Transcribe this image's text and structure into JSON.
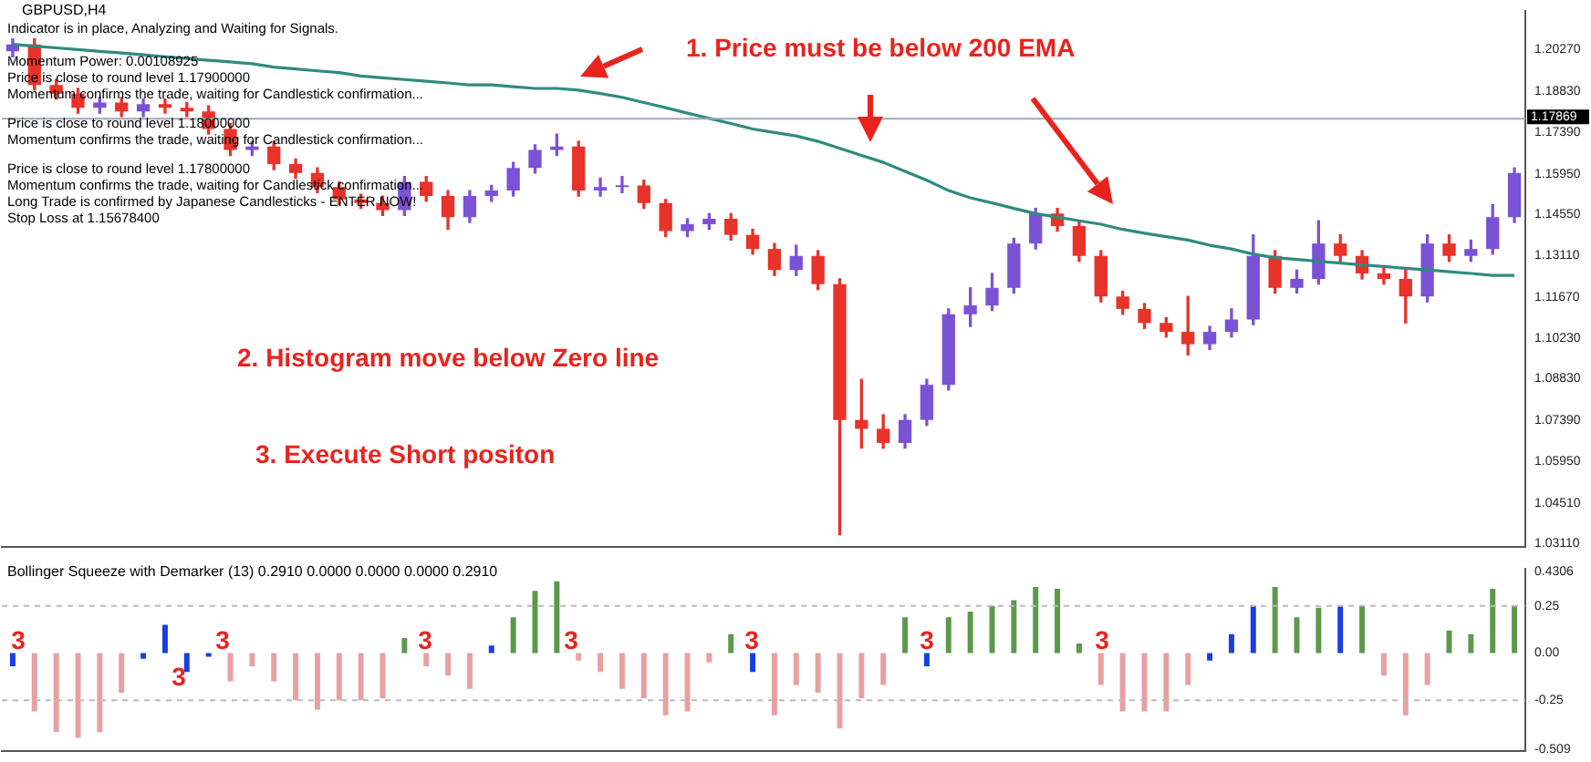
{
  "chart_data": [
    {
      "type": "candlestick",
      "title": "GBPUSD,H4",
      "annotations": [
        "Indicator is in place, Analyzing and Waiting for Signals.",
        "Momentum Power: 0.00108925",
        "Price is close to round level 1.17900000",
        "Momentum confirms the trade, waiting for Candlestick confirmation...",
        "Price is close to round level 1.18000000",
        "Momentum confirms the trade, waiting for Candlestick confirmation...",
        "Price is close to round level 1.17800000",
        "Momentum confirms the trade, waiting for Candlestick confirmation...",
        "Long Trade is confirmed by Japanese Candlesticks - ENTER NOW!",
        "Stop Loss at 1.15678400",
        "1. Price must be below 200 EMA",
        "2. Histogram move below Zero line",
        "3. Execute Short positon"
      ],
      "categories": [
        null,
        null,
        null,
        null,
        null,
        null,
        null,
        null,
        null,
        null,
        null,
        null,
        null,
        null,
        null,
        null,
        null,
        null,
        null,
        null,
        null,
        null,
        null,
        null,
        null,
        null,
        null,
        null,
        null,
        null,
        null,
        null,
        null,
        null,
        null,
        null,
        null,
        null,
        null,
        null,
        null,
        null,
        null,
        null,
        null,
        null,
        null,
        null,
        null,
        null,
        null,
        null,
        null,
        null,
        null,
        null,
        null,
        null,
        null,
        null,
        null,
        null,
        null,
        null,
        null,
        null,
        null,
        null,
        null,
        null
      ],
      "ohlc": [
        [
          1.2021,
          1.2064,
          1.2002,
          1.2045
        ],
        [
          1.2045,
          1.2064,
          1.1886,
          1.1904
        ],
        [
          1.1904,
          1.1923,
          1.1855,
          1.1874
        ],
        [
          1.1874,
          1.1892,
          1.1806,
          1.1825
        ],
        [
          1.1825,
          1.1861,
          1.1806,
          1.1843
        ],
        [
          1.1843,
          1.1861,
          1.1794,
          1.1812
        ],
        [
          1.1812,
          1.1855,
          1.1794,
          1.1837
        ],
        [
          1.1837,
          1.1855,
          1.1806,
          1.1825
        ],
        [
          1.1825,
          1.1843,
          1.1794,
          1.1812
        ],
        [
          1.1812,
          1.1831,
          1.1733,
          1.1751
        ],
        [
          1.1751,
          1.177,
          1.1659,
          1.1678
        ],
        [
          1.1678,
          1.1708,
          1.1659,
          1.169
        ],
        [
          1.169,
          1.1708,
          1.161,
          1.1629
        ],
        [
          1.1629,
          1.1647,
          1.158,
          1.1598
        ],
        [
          1.1598,
          1.1616,
          1.153,
          1.1549
        ],
        [
          1.1549,
          1.1567,
          1.1488,
          1.1506
        ],
        [
          1.1506,
          1.1524,
          1.1475,
          1.1494
        ],
        [
          1.1494,
          1.1518,
          1.1451,
          1.1469
        ],
        [
          1.1469,
          1.1586,
          1.1451,
          1.1567
        ],
        [
          1.1567,
          1.1586,
          1.15,
          1.1518
        ],
        [
          1.1518,
          1.1537,
          1.1402,
          1.1445
        ],
        [
          1.1445,
          1.1537,
          1.1426,
          1.1518
        ],
        [
          1.1518,
          1.1555,
          1.15,
          1.1537
        ],
        [
          1.1537,
          1.1635,
          1.1518,
          1.1616
        ],
        [
          1.1616,
          1.1696,
          1.1598,
          1.1678
        ],
        [
          1.1678,
          1.1733,
          1.1659,
          1.169
        ],
        [
          1.169,
          1.1708,
          1.1518,
          1.1537
        ],
        [
          1.1537,
          1.158,
          1.1518,
          1.1549
        ],
        [
          1.1549,
          1.1586,
          1.153,
          1.1555
        ],
        [
          1.1555,
          1.1573,
          1.1475,
          1.1494
        ],
        [
          1.1494,
          1.1506,
          1.1377,
          1.1396
        ],
        [
          1.1396,
          1.1439,
          1.1377,
          1.142
        ],
        [
          1.142,
          1.1457,
          1.1402,
          1.1439
        ],
        [
          1.1439,
          1.1457,
          1.1365,
          1.1383
        ],
        [
          1.1383,
          1.1402,
          1.1316,
          1.1334
        ],
        [
          1.1334,
          1.1353,
          1.1242,
          1.1261
        ],
        [
          1.1261,
          1.1347,
          1.1242,
          1.131
        ],
        [
          1.131,
          1.1328,
          1.1193,
          1.1212
        ],
        [
          1.1212,
          1.123,
          1.0341,
          1.074
        ],
        [
          1.074,
          1.0881,
          1.0642,
          1.0709
        ],
        [
          1.0709,
          1.0758,
          1.0642,
          1.066
        ],
        [
          1.066,
          1.0758,
          1.0642,
          1.074
        ],
        [
          1.074,
          1.0881,
          1.0721,
          1.0862
        ],
        [
          1.0862,
          1.1126,
          1.0844,
          1.1107
        ],
        [
          1.1107,
          1.1199,
          1.1065,
          1.1138
        ],
        [
          1.1138,
          1.1249,
          1.112,
          1.1199
        ],
        [
          1.1199,
          1.1371,
          1.1181,
          1.1353
        ],
        [
          1.1353,
          1.1475,
          1.1334,
          1.1457
        ],
        [
          1.1457,
          1.1475,
          1.1396,
          1.1414
        ],
        [
          1.1414,
          1.1432,
          1.1291,
          1.131
        ],
        [
          1.131,
          1.1328,
          1.115,
          1.1169
        ],
        [
          1.1169,
          1.1187,
          1.1107,
          1.1126
        ],
        [
          1.1126,
          1.1144,
          1.1058,
          1.1077
        ],
        [
          1.1077,
          1.1095,
          1.1028,
          1.1046
        ],
        [
          1.1046,
          1.1169,
          1.0966,
          1.1003
        ],
        [
          1.1003,
          1.1065,
          1.0985,
          1.1046
        ],
        [
          1.1046,
          1.1126,
          1.1028,
          1.1089
        ],
        [
          1.1089,
          1.1383,
          1.1071,
          1.131
        ],
        [
          1.131,
          1.1328,
          1.1181,
          1.1199
        ],
        [
          1.1199,
          1.1261,
          1.1181,
          1.123
        ],
        [
          1.123,
          1.1432,
          1.1212,
          1.1353
        ],
        [
          1.1353,
          1.1383,
          1.1291,
          1.131
        ],
        [
          1.131,
          1.1328,
          1.123,
          1.1249
        ],
        [
          1.1249,
          1.1267,
          1.1212,
          1.123
        ],
        [
          1.123,
          1.1261,
          1.1077,
          1.1169
        ],
        [
          1.1169,
          1.1383,
          1.115,
          1.1353
        ],
        [
          1.1353,
          1.1383,
          1.1291,
          1.131
        ],
        [
          1.131,
          1.1365,
          1.1291,
          1.1334
        ],
        [
          1.1334,
          1.1488,
          1.1316,
          1.1445
        ],
        [
          1.1445,
          1.1616,
          1.1426,
          1.1598
        ]
      ],
      "colors": [
        "#7b52d6",
        "#e8322a",
        "#e8322a",
        "#e8322a",
        "#7b52d6",
        "#e8322a",
        "#7b52d6",
        "#e8322a",
        "#e8322a",
        "#e8322a",
        "#e8322a",
        "#7b52d6",
        "#e8322a",
        "#e8322a",
        "#e8322a",
        "#e8322a",
        "#e8322a",
        "#e8322a",
        "#7b52d6",
        "#e8322a",
        "#e8322a",
        "#7b52d6",
        "#7b52d6",
        "#7b52d6",
        "#7b52d6",
        "#7b52d6",
        "#e8322a",
        "#7b52d6",
        "#7b52d6",
        "#e8322a",
        "#e8322a",
        "#7b52d6",
        "#7b52d6",
        "#e8322a",
        "#e8322a",
        "#e8322a",
        "#7b52d6",
        "#e8322a",
        "#e8322a",
        "#e8322a",
        "#e8322a",
        "#7b52d6",
        "#7b52d6",
        "#7b52d6",
        "#7b52d6",
        "#7b52d6",
        "#7b52d6",
        "#7b52d6",
        "#e8322a",
        "#e8322a",
        "#e8322a",
        "#e8322a",
        "#e8322a",
        "#e8322a",
        "#e8322a",
        "#7b52d6",
        "#7b52d6",
        "#7b52d6",
        "#e8322a",
        "#7b52d6",
        "#7b52d6",
        "#e8322a",
        "#e8322a",
        "#e8322a",
        "#e8322a",
        "#7b52d6",
        "#e8322a",
        "#7b52d6",
        "#7b52d6",
        "#7b52d6"
      ],
      "series": [
        {
          "type": "line",
          "color": "#2e8b7e",
          "values": [
            1.2045,
            1.2039,
            1.2033,
            1.2027,
            1.2021,
            1.2015,
            1.2009,
            1.2002,
            1.1996,
            1.199,
            1.1984,
            1.1978,
            1.1966,
            1.196,
            1.1953,
            1.1947,
            1.1935,
            1.1929,
            1.1923,
            1.1917,
            1.1911,
            1.1904,
            1.1904,
            1.1898,
            1.1892,
            1.1892,
            1.1886,
            1.1874,
            1.1861,
            1.1843,
            1.1825,
            1.1806,
            1.1788,
            1.177,
            1.1751,
            1.1739,
            1.1727,
            1.1708,
            1.1684,
            1.1659,
            1.1635,
            1.1604,
            1.1573,
            1.1537,
            1.1512,
            1.1494,
            1.1475,
            1.1457,
            1.1445,
            1.1432,
            1.142,
            1.1402,
            1.1389,
            1.1377,
            1.1365,
            1.1347,
            1.1334,
            1.1316,
            1.1304,
            1.1298,
            1.1291,
            1.1285,
            1.1279,
            1.1273,
            1.1267,
            1.1261,
            1.1255,
            1.1249,
            1.1242,
            1.1242
          ]
        }
      ],
      "ylim": [
        1.03,
        1.216
      ],
      "yticks": [
        {
          "value": 1.2027,
          "label": "1.20270"
        },
        {
          "value": 1.1883,
          "label": "1.18830"
        },
        {
          "value": 1.1739,
          "label": "1.17390"
        },
        {
          "value": 1.1595,
          "label": "1.15950"
        },
        {
          "value": 1.1455,
          "label": "1.14550"
        },
        {
          "value": 1.1311,
          "label": "1.13110"
        },
        {
          "value": 1.1167,
          "label": "1.11670"
        },
        {
          "value": 1.1023,
          "label": "1.10230"
        },
        {
          "value": 1.0883,
          "label": "1.08830"
        },
        {
          "value": 1.0739,
          "label": "1.07390"
        },
        {
          "value": 1.0595,
          "label": "1.05950"
        },
        {
          "value": 1.0451,
          "label": "1.04510"
        },
        {
          "value": 1.0311,
          "label": "1.03110"
        }
      ],
      "ref_lines": [
        {
          "axis": "y",
          "value": 1.17869,
          "label": "1.17869",
          "color": "#9aaabb"
        }
      ],
      "tick_labels": "y"
    },
    {
      "type": "bar",
      "title": "Bollinger Squeeze with Demarker (13) 0.2910 0.0000 0.0000 0.0000 0.2910",
      "annotations": [
        "3",
        "3",
        "3",
        "3",
        "3",
        "3",
        "3",
        "3"
      ],
      "categories": [
        null,
        null,
        null,
        null,
        null,
        null,
        null,
        null,
        null,
        null,
        null,
        null,
        null,
        null,
        null,
        null,
        null,
        null,
        null,
        null,
        null,
        null,
        null,
        null,
        null,
        null,
        null,
        null,
        null,
        null,
        null,
        null,
        null,
        null,
        null,
        null,
        null,
        null,
        null,
        null,
        null,
        null,
        null,
        null,
        null,
        null,
        null,
        null,
        null,
        null,
        null,
        null,
        null,
        null,
        null,
        null,
        null,
        null,
        null,
        null,
        null,
        null,
        null,
        null,
        null,
        null,
        null,
        null,
        null,
        null
      ],
      "values": [
        -0.07,
        -0.31,
        -0.42,
        -0.45,
        -0.42,
        -0.21,
        -0.03,
        0.15,
        -0.1,
        -0.02,
        -0.15,
        -0.07,
        -0.15,
        -0.25,
        -0.3,
        -0.25,
        -0.25,
        -0.24,
        0.08,
        -0.07,
        -0.12,
        -0.19,
        0.04,
        0.19,
        0.33,
        0.38,
        -0.04,
        -0.1,
        -0.19,
        -0.24,
        -0.33,
        -0.31,
        -0.05,
        0.1,
        -0.1,
        -0.33,
        -0.17,
        -0.21,
        -0.4,
        -0.24,
        -0.17,
        0.19,
        -0.07,
        0.19,
        0.22,
        0.25,
        0.28,
        0.35,
        0.34,
        0.05,
        -0.17,
        -0.31,
        -0.31,
        -0.31,
        -0.17,
        -0.04,
        0.1,
        0.25,
        0.35,
        0.19,
        0.24,
        0.25,
        0.25,
        -0.12,
        -0.33,
        -0.17,
        0.12,
        0.1,
        0.34,
        0.25
      ],
      "colors": [
        "#1a3fe0",
        "#e8a0a0",
        "#e8a0a0",
        "#e8a0a0",
        "#e8a0a0",
        "#e8a0a0",
        "#1a3fe0",
        "#1a3fe0",
        "#1a3fe0",
        "#1a3fe0",
        "#e8a0a0",
        "#e8a0a0",
        "#e8a0a0",
        "#e8a0a0",
        "#e8a0a0",
        "#e8a0a0",
        "#e8a0a0",
        "#e8a0a0",
        "#5a9a4a",
        "#e8a0a0",
        "#e8a0a0",
        "#e8a0a0",
        "#1a3fe0",
        "#5a9a4a",
        "#5a9a4a",
        "#5a9a4a",
        "#e8a0a0",
        "#e8a0a0",
        "#e8a0a0",
        "#e8a0a0",
        "#e8a0a0",
        "#e8a0a0",
        "#e8a0a0",
        "#5a9a4a",
        "#1a3fe0",
        "#e8a0a0",
        "#e8a0a0",
        "#e8a0a0",
        "#e8a0a0",
        "#e8a0a0",
        "#e8a0a0",
        "#5a9a4a",
        "#1a3fe0",
        "#5a9a4a",
        "#5a9a4a",
        "#5a9a4a",
        "#5a9a4a",
        "#5a9a4a",
        "#5a9a4a",
        "#5a9a4a",
        "#e8a0a0",
        "#e8a0a0",
        "#e8a0a0",
        "#e8a0a0",
        "#e8a0a0",
        "#1a3fe0",
        "#1a3fe0",
        "#1a3fe0",
        "#5a9a4a",
        "#5a9a4a",
        "#5a9a4a",
        "#1a3fe0",
        "#5a9a4a",
        "#e8a0a0",
        "#e8a0a0",
        "#e8a0a0",
        "#5a9a4a",
        "#5a9a4a",
        "#5a9a4a",
        "#5a9a4a"
      ],
      "ylim": [
        -0.518,
        0.445
      ],
      "yticks": [
        {
          "value": 0.4306,
          "label": "0.4306"
        },
        {
          "value": 0.25,
          "label": "0.25"
        },
        {
          "value": 0,
          "label": "0.00"
        },
        {
          "value": -0.25,
          "label": "-0.25"
        },
        {
          "value": -0.509,
          "label": "-0.509"
        }
      ],
      "ref_lines": [
        {
          "axis": "y",
          "value": 0.25,
          "color": "#bbbbbb",
          "line_style": "dashed"
        },
        {
          "axis": "y",
          "value": -0.25,
          "color": "#bbbbbb",
          "line_style": "dashed"
        }
      ],
      "tick_labels": "y"
    }
  ]
}
